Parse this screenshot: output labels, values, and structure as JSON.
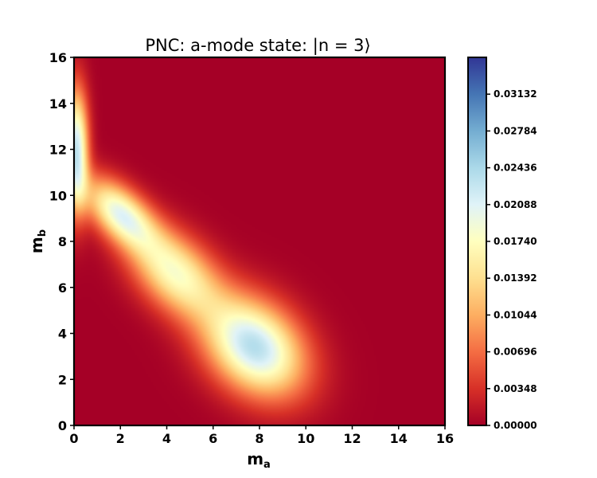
{
  "chart_data": {
    "type": "heatmap",
    "title": "PNC: a-mode state: |n = 3⟩",
    "xlabel": {
      "base": "m",
      "sub": "a"
    },
    "ylabel": {
      "base": "m",
      "sub": "b"
    },
    "xlim": [
      0,
      16
    ],
    "ylim": [
      0,
      16
    ],
    "x_ticks": [
      "0",
      "2",
      "4",
      "6",
      "8",
      "10",
      "12",
      "14",
      "16"
    ],
    "y_ticks": [
      "0",
      "2",
      "4",
      "6",
      "8",
      "10",
      "12",
      "14",
      "16"
    ],
    "colormap": "RdYlBu",
    "value_range": [
      0.0,
      0.0348
    ],
    "colorbar_ticks": [
      "0.00000",
      "0.00348",
      "0.00696",
      "0.01044",
      "0.01392",
      "0.01740",
      "0.02088",
      "0.02436",
      "0.02784",
      "0.03132"
    ],
    "peaks": [
      {
        "m_a": 7.8,
        "m_b": 3.4,
        "value": 0.0235
      },
      {
        "m_a": 4.4,
        "m_b": 6.6,
        "value": 0.017
      },
      {
        "m_a": 2.0,
        "m_b": 9.2,
        "value": 0.0195
      },
      {
        "m_a": 0.1,
        "m_b": 12.0,
        "value": 0.0225
      }
    ]
  }
}
